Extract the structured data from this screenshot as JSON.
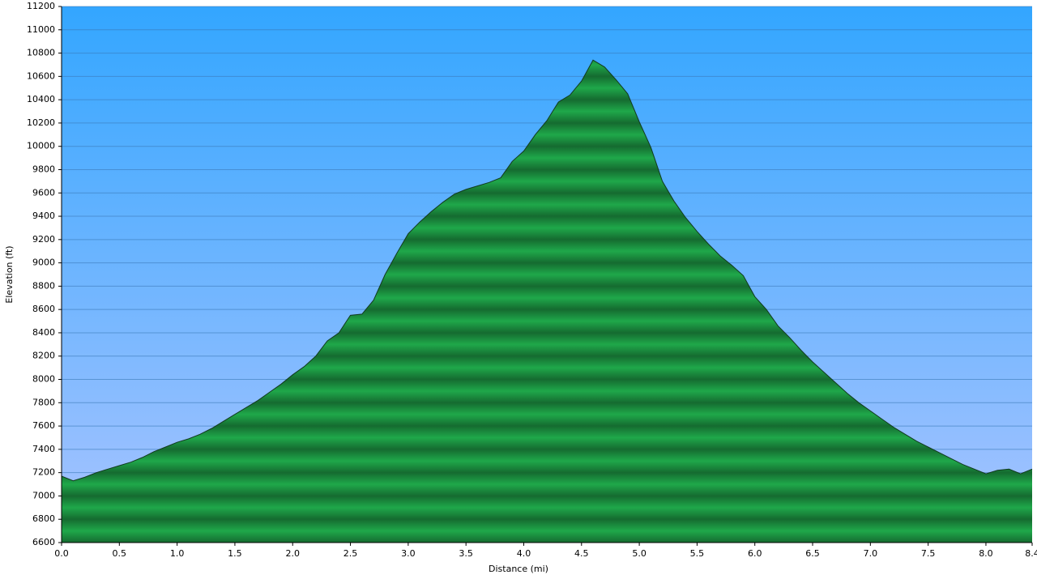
{
  "chart_data": {
    "type": "area",
    "x_label": "Distance (mi)",
    "y_label": "Elevation (ft)",
    "x": [
      0.0,
      0.1,
      0.2,
      0.3,
      0.4,
      0.5,
      0.6,
      0.7,
      0.8,
      0.9,
      1.0,
      1.1,
      1.2,
      1.3,
      1.4,
      1.5,
      1.6,
      1.7,
      1.8,
      1.9,
      2.0,
      2.1,
      2.2,
      2.3,
      2.4,
      2.5,
      2.6,
      2.7,
      2.8,
      2.9,
      3.0,
      3.1,
      3.2,
      3.3,
      3.4,
      3.5,
      3.6,
      3.7,
      3.8,
      3.9,
      4.0,
      4.1,
      4.2,
      4.3,
      4.4,
      4.5,
      4.6,
      4.7,
      4.8,
      4.9,
      5.0,
      5.1,
      5.2,
      5.3,
      5.4,
      5.5,
      5.6,
      5.7,
      5.8,
      5.9,
      6.0,
      6.1,
      6.2,
      6.3,
      6.4,
      6.5,
      6.6,
      6.7,
      6.8,
      6.9,
      7.0,
      7.1,
      7.2,
      7.3,
      7.4,
      7.5,
      7.6,
      7.7,
      7.8,
      7.9,
      8.0,
      8.1,
      8.2,
      8.3,
      8.4
    ],
    "values": [
      7170,
      7130,
      7160,
      7200,
      7230,
      7260,
      7290,
      7330,
      7380,
      7420,
      7460,
      7490,
      7530,
      7580,
      7640,
      7700,
      7760,
      7820,
      7890,
      7960,
      8040,
      8110,
      8200,
      8330,
      8400,
      8550,
      8560,
      8680,
      8900,
      9080,
      9250,
      9350,
      9440,
      9520,
      9590,
      9630,
      9660,
      9690,
      9730,
      9870,
      9960,
      10100,
      10220,
      10380,
      10440,
      10560,
      10740,
      10680,
      10570,
      10450,
      10210,
      9990,
      9700,
      9530,
      9390,
      9270,
      9160,
      9060,
      8980,
      8890,
      8710,
      8600,
      8460,
      8360,
      8250,
      8150,
      8060,
      7970,
      7880,
      7800,
      7730,
      7660,
      7590,
      7530,
      7470,
      7420,
      7370,
      7320,
      7270,
      7230,
      7190,
      7220,
      7230,
      7190,
      7230
    ],
    "color": "#1fa84a",
    "xlim": [
      0,
      8.4
    ],
    "xticks": [
      {
        "value": 0,
        "label": "0.0"
      },
      0.5,
      {
        "value": 1,
        "label": "1.0"
      },
      1.5,
      {
        "value": 2,
        "label": "2.0"
      },
      2.5,
      {
        "value": 3,
        "label": "3.0"
      },
      3.5,
      {
        "value": 4,
        "label": "4.0"
      },
      4.5,
      {
        "value": 5,
        "label": "5.0"
      },
      5.5,
      {
        "value": 6,
        "label": "6.0"
      },
      6.5,
      {
        "value": 7,
        "label": "7.0"
      },
      7.5,
      {
        "value": 8,
        "label": "8.0"
      },
      8.4
    ],
    "ylim": [
      6600,
      11200
    ],
    "yticks": [
      6600,
      6800,
      7000,
      7200,
      7400,
      7600,
      7800,
      8000,
      8200,
      8400,
      8600,
      8800,
      9000,
      9200,
      9400,
      9600,
      9800,
      10000,
      10200,
      10400,
      10600,
      10800,
      11000,
      11200
    ],
    "grid": true
  }
}
